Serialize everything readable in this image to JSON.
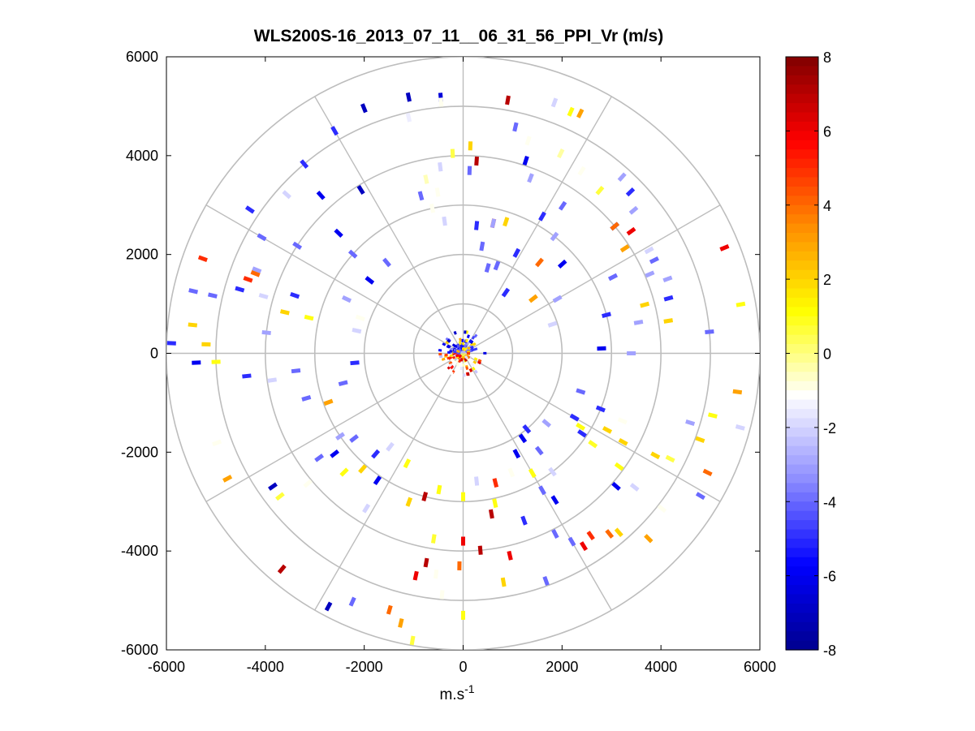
{
  "chart_data": {
    "type": "polar-scan",
    "title": "WLS200S-16_2013_07_11__06_31_56_PPI_Vr (m/s)",
    "xlabel_base": "m.s",
    "xlabel_exp": "-1",
    "ylabel": "",
    "xlim": [
      -6000,
      6000
    ],
    "ylim": [
      -6000,
      6000
    ],
    "x_ticks": [
      "-6000",
      "-4000",
      "-2000",
      "0",
      "2000",
      "4000",
      "6000"
    ],
    "y_ticks": [
      "6000",
      "4000",
      "2000",
      "0",
      "-2000",
      "-4000",
      "-6000"
    ],
    "range_rings": [
      1000,
      2000,
      3000,
      4000,
      5000,
      6000
    ],
    "spokes_deg": [
      0,
      30,
      60,
      90,
      120,
      150,
      180,
      210,
      240,
      270,
      300,
      330
    ],
    "colorbar": {
      "min": -8,
      "max": 8,
      "ticks": [
        "8",
        "6",
        "4",
        "2",
        "0",
        "-2",
        "-4",
        "-6",
        "-8"
      ],
      "stops": [
        "#00008f",
        "#0000ff",
        "#8c8cff",
        "#ffffff",
        "#ffff00",
        "#ff8c00",
        "#ff0000",
        "#800000"
      ]
    },
    "points": [
      {
        "r": 5200,
        "az": 355,
        "v": -6.5
      },
      {
        "r": 5300,
        "az": 348,
        "v": -7
      },
      {
        "r": 5350,
        "az": 338,
        "v": -7
      },
      {
        "r": 5200,
        "az": 330,
        "v": -5
      },
      {
        "r": 4900,
        "az": 347,
        "v": -1.5
      },
      {
        "r": 5100,
        "az": 355,
        "v": -1.0
      },
      {
        "r": 5200,
        "az": 10,
        "v": 7
      },
      {
        "r": 5400,
        "az": 20,
        "v": -2
      },
      {
        "r": 5350,
        "az": 24,
        "v": 1
      },
      {
        "r": 5400,
        "az": 26,
        "v": 3
      },
      {
        "r": 4700,
        "az": 13,
        "v": -4
      },
      {
        "r": 4500,
        "az": 17,
        "v": -1
      },
      {
        "r": 4500,
        "az": 26,
        "v": -0.3
      },
      {
        "r": 4400,
        "az": 33,
        "v": -1
      },
      {
        "r": 4100,
        "az": 18,
        "v": -6
      },
      {
        "r": 3800,
        "az": 21,
        "v": -3
      },
      {
        "r": 4300,
        "az": 40,
        "v": 0.6
      },
      {
        "r": 4500,
        "az": 50,
        "v": -3
      },
      {
        "r": 4200,
        "az": 54,
        "v": 6
      },
      {
        "r": 4300,
        "az": 61,
        "v": -2
      },
      {
        "r": 4300,
        "az": 64,
        "v": -4
      },
      {
        "r": 4400,
        "az": 70,
        "v": -3
      },
      {
        "r": 4000,
        "az": 50,
        "v": -6
      },
      {
        "r": 3900,
        "az": 57,
        "v": 3
      },
      {
        "r": 4300,
        "az": 75,
        "v": -5
      },
      {
        "r": 4200,
        "az": 81,
        "v": 2
      },
      {
        "r": 5700,
        "az": 68,
        "v": 6
      },
      {
        "r": 5700,
        "az": 80,
        "v": 1
      },
      {
        "r": 5000,
        "az": 85,
        "v": -4
      },
      {
        "r": 3400,
        "az": 63,
        "v": -4
      },
      {
        "r": 4100,
        "az": 67,
        "v": -3
      },
      {
        "r": 3800,
        "az": 75,
        "v": 2
      },
      {
        "r": 3600,
        "az": 80,
        "v": -3
      },
      {
        "r": 3000,
        "az": 75,
        "v": -5
      },
      {
        "r": 2800,
        "az": 88,
        "v": -6
      },
      {
        "r": 3400,
        "az": 90,
        "v": -3
      },
      {
        "r": 4000,
        "az": 50,
        "v": 4
      },
      {
        "r": 4800,
        "az": 42,
        "v": -3
      },
      {
        "r": 4700,
        "az": 46,
        "v": -5
      },
      {
        "r": 3600,
        "az": 34,
        "v": -4
      },
      {
        "r": 3200,
        "az": 30,
        "v": -5
      },
      {
        "r": 3000,
        "az": 38,
        "v": -3
      },
      {
        "r": 2700,
        "az": 13,
        "v": 5
      },
      {
        "r": 2800,
        "az": 18,
        "v": 2
      },
      {
        "r": 3900,
        "az": 4,
        "v": 7
      },
      {
        "r": 3700,
        "az": 2,
        "v": -4
      },
      {
        "r": 4200,
        "az": 2,
        "v": 2
      },
      {
        "r": 4050,
        "az": 357,
        "v": 0.5
      },
      {
        "r": 3800,
        "az": 353,
        "v": -2
      },
      {
        "r": 3600,
        "az": 348,
        "v": -0.5
      },
      {
        "r": 3300,
        "az": 351,
        "v": -1
      },
      {
        "r": 3300,
        "az": 345,
        "v": -4
      },
      {
        "r": 3000,
        "az": 348,
        "v": -1
      },
      {
        "r": 2700,
        "az": 352,
        "v": -2
      },
      {
        "r": 2600,
        "az": 6,
        "v": -5
      },
      {
        "r": 2700,
        "az": 13,
        "v": -3
      },
      {
        "r": 2200,
        "az": 10,
        "v": -4
      },
      {
        "r": 2300,
        "az": 28,
        "v": -5
      },
      {
        "r": 2400,
        "az": 40,
        "v": 4
      },
      {
        "r": 1800,
        "az": 16,
        "v": -4
      },
      {
        "r": 1900,
        "az": 21,
        "v": -4
      },
      {
        "r": 1500,
        "az": 35,
        "v": -5
      },
      {
        "r": 1800,
        "az": 52,
        "v": 3
      },
      {
        "r": 1900,
        "az": 72,
        "v": -2
      },
      {
        "r": 2200,
        "az": 60,
        "v": -3
      },
      {
        "r": 2700,
        "az": 48,
        "v": -6
      },
      {
        "r": 5000,
        "az": 320,
        "v": -5
      },
      {
        "r": 4800,
        "az": 312,
        "v": -2
      },
      {
        "r": 5200,
        "az": 304,
        "v": -5
      },
      {
        "r": 4700,
        "az": 300,
        "v": -4
      },
      {
        "r": 4300,
        "az": 318,
        "v": -6
      },
      {
        "r": 4000,
        "az": 303,
        "v": -4
      },
      {
        "r": 3900,
        "az": 328,
        "v": -7
      },
      {
        "r": 3500,
        "az": 314,
        "v": -6
      },
      {
        "r": 5600,
        "az": 290,
        "v": 5
      },
      {
        "r": 5600,
        "az": 283,
        "v": -4
      },
      {
        "r": 5500,
        "az": 276,
        "v": 2
      },
      {
        "r": 5900,
        "az": 272,
        "v": -5
      },
      {
        "r": 5200,
        "az": 283,
        "v": -4
      },
      {
        "r": 4700,
        "az": 286,
        "v": -5
      },
      {
        "r": 4200,
        "az": 286,
        "v": -2
      },
      {
        "r": 4500,
        "az": 292,
        "v": -3
      },
      {
        "r": 4600,
        "az": 289,
        "v": 5
      },
      {
        "r": 4500,
        "az": 291,
        "v": 4
      },
      {
        "r": 5200,
        "az": 272,
        "v": 2
      },
      {
        "r": 5000,
        "az": 268,
        "v": 1
      },
      {
        "r": 4000,
        "az": 276,
        "v": -3
      },
      {
        "r": 3700,
        "az": 283,
        "v": 2
      },
      {
        "r": 3200,
        "az": 283,
        "v": 1
      },
      {
        "r": 3600,
        "az": 289,
        "v": -5
      },
      {
        "r": 2600,
        "az": 295,
        "v": -3
      },
      {
        "r": 2200,
        "az": 282,
        "v": -2
      },
      {
        "r": 2200,
        "az": 289,
        "v": -1
      },
      {
        "r": 2400,
        "az": 308,
        "v": -6
      },
      {
        "r": 2400,
        "az": 320,
        "v": -4
      },
      {
        "r": 3000,
        "az": 312,
        "v": -4
      },
      {
        "r": 5400,
        "az": 268,
        "v": -6
      },
      {
        "r": 5300,
        "az": 250,
        "v": -1
      },
      {
        "r": 5400,
        "az": 242,
        "v": 3
      },
      {
        "r": 4400,
        "az": 264,
        "v": -5
      },
      {
        "r": 3900,
        "az": 262,
        "v": -2
      },
      {
        "r": 3400,
        "az": 264,
        "v": -4
      },
      {
        "r": 3300,
        "az": 254,
        "v": -4
      },
      {
        "r": 2900,
        "az": 250,
        "v": 3
      },
      {
        "r": 2500,
        "az": 256,
        "v": -4
      },
      {
        "r": 2200,
        "az": 265,
        "v": -5
      },
      {
        "r": 4700,
        "az": 235,
        "v": -7
      },
      {
        "r": 4700,
        "az": 232,
        "v": 0.6
      },
      {
        "r": 4100,
        "az": 230,
        "v": -1
      },
      {
        "r": 3600,
        "az": 234,
        "v": -4
      },
      {
        "r": 3300,
        "az": 232,
        "v": -6
      },
      {
        "r": 3000,
        "az": 236,
        "v": -3
      },
      {
        "r": 2800,
        "az": 232,
        "v": -4
      },
      {
        "r": 3100,
        "az": 221,
        "v": 2
      },
      {
        "r": 3400,
        "az": 225,
        "v": 1
      },
      {
        "r": 3100,
        "az": 214,
        "v": -6
      },
      {
        "r": 3700,
        "az": 212,
        "v": -2
      },
      {
        "r": 2700,
        "az": 221,
        "v": -5
      },
      {
        "r": 2500,
        "az": 207,
        "v": 1
      },
      {
        "r": 2400,
        "az": 218,
        "v": -2
      },
      {
        "r": 5800,
        "az": 208,
        "v": -7
      },
      {
        "r": 5700,
        "az": 220,
        "v": 7
      },
      {
        "r": 5500,
        "az": 204,
        "v": -4
      },
      {
        "r": 5400,
        "az": 196,
        "v": 4
      },
      {
        "r": 5600,
        "az": 193,
        "v": 3
      },
      {
        "r": 5900,
        "az": 190,
        "v": 0.6
      },
      {
        "r": 4900,
        "az": 185,
        "v": -1
      },
      {
        "r": 5300,
        "az": 180,
        "v": 1
      },
      {
        "r": 4600,
        "az": 192,
        "v": 6
      },
      {
        "r": 4300,
        "az": 190,
        "v": 7
      },
      {
        "r": 3800,
        "az": 189,
        "v": 0.7
      },
      {
        "r": 3800,
        "az": 180,
        "v": 6
      },
      {
        "r": 4000,
        "az": 175,
        "v": 7
      },
      {
        "r": 4200,
        "az": 167,
        "v": 6
      },
      {
        "r": 4300,
        "az": 181,
        "v": 4
      },
      {
        "r": 4500,
        "az": 187,
        "v": -1
      },
      {
        "r": 4900,
        "az": 160,
        "v": -4
      },
      {
        "r": 4700,
        "az": 170,
        "v": 2
      },
      {
        "r": 3300,
        "az": 170,
        "v": 7
      },
      {
        "r": 3100,
        "az": 168,
        "v": 1
      },
      {
        "r": 2800,
        "az": 190,
        "v": 1
      },
      {
        "r": 3000,
        "az": 195,
        "v": 7
      },
      {
        "r": 3200,
        "az": 200,
        "v": 2
      },
      {
        "r": 2900,
        "az": 180,
        "v": 1
      },
      {
        "r": 2700,
        "az": 166,
        "v": 5
      },
      {
        "r": 2600,
        "az": 174,
        "v": -2
      },
      {
        "r": 3600,
        "az": 160,
        "v": -5
      },
      {
        "r": 4100,
        "az": 153,
        "v": -4
      },
      {
        "r": 4400,
        "az": 150,
        "v": -4
      },
      {
        "r": 3500,
        "az": 148,
        "v": -6
      },
      {
        "r": 3200,
        "az": 150,
        "v": -4
      },
      {
        "r": 3000,
        "az": 143,
        "v": -2
      },
      {
        "r": 2800,
        "az": 150,
        "v": 1
      },
      {
        "r": 2500,
        "az": 142,
        "v": -4
      },
      {
        "r": 2300,
        "az": 152,
        "v": -6
      },
      {
        "r": 2000,
        "az": 140,
        "v": -5
      },
      {
        "r": 2100,
        "az": 145,
        "v": -6
      },
      {
        "r": 2600,
        "az": 158,
        "v": -1
      },
      {
        "r": 4500,
        "az": 145,
        "v": 5
      },
      {
        "r": 4700,
        "az": 141,
        "v": 4
      },
      {
        "r": 4600,
        "az": 148,
        "v": 6
      },
      {
        "r": 4800,
        "az": 139,
        "v": 2
      },
      {
        "r": 5300,
        "az": 135,
        "v": 3
      },
      {
        "r": 5100,
        "az": 128,
        "v": -1
      },
      {
        "r": 4400,
        "az": 128,
        "v": -2
      },
      {
        "r": 4100,
        "az": 131,
        "v": -6
      },
      {
        "r": 3900,
        "az": 126,
        "v": 1
      },
      {
        "r": 3700,
        "az": 119,
        "v": 2
      },
      {
        "r": 3300,
        "az": 118,
        "v": 2
      },
      {
        "r": 3500,
        "az": 113,
        "v": -1
      },
      {
        "r": 4400,
        "az": 118,
        "v": 2
      },
      {
        "r": 4700,
        "az": 117,
        "v": 0.5
      },
      {
        "r": 4800,
        "az": 107,
        "v": -3
      },
      {
        "r": 5100,
        "az": 110,
        "v": 2
      },
      {
        "r": 5200,
        "az": 104,
        "v": 1
      },
      {
        "r": 5600,
        "az": 98,
        "v": 3
      },
      {
        "r": 5800,
        "az": 105,
        "v": -2
      },
      {
        "r": 5500,
        "az": 116,
        "v": 4
      },
      {
        "r": 5600,
        "az": 121,
        "v": -4
      },
      {
        "r": 3000,
        "az": 112,
        "v": -5
      },
      {
        "r": 2500,
        "az": 108,
        "v": -4
      },
      {
        "r": 2600,
        "az": 120,
        "v": -5
      },
      {
        "r": 2800,
        "az": 122,
        "v": 1
      },
      {
        "r": 2900,
        "az": 124,
        "v": -5
      },
      {
        "r": 3200,
        "az": 125,
        "v": 0.8
      },
      {
        "r": 2200,
        "az": 130,
        "v": -3
      }
    ]
  }
}
